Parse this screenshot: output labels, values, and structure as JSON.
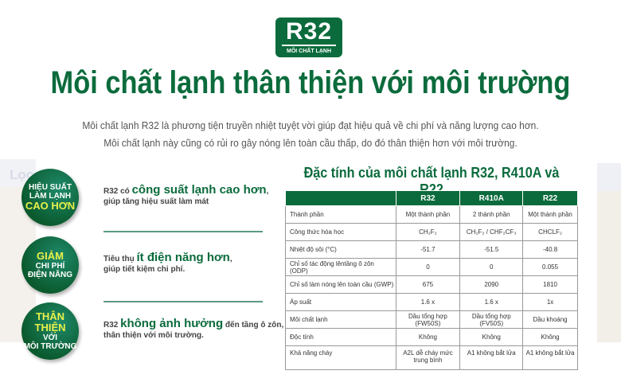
{
  "background": {
    "partial_text": "Lọc"
  },
  "logo": {
    "main": "R32",
    "caption": "MÔI CHẤT LẠNH"
  },
  "title": "Môi chất lạnh thân thiện với môi trường",
  "subtitle": [
    "Môi chất lạnh R32 là phương tiện truyền nhiệt tuyệt vời giúp đạt hiệu quả về chi phí và năng lượng cao hơn.",
    "Môi chất lạnh này cũng có rủi ro gây nóng lên toàn cầu thấp, do đó thân thiện hơn với môi trường."
  ],
  "features": [
    {
      "badge": [
        "HIỆU SUẤT",
        "LÀM LẠNH",
        "CAO HƠN"
      ],
      "pre": "R32 có ",
      "highlight": "công suất lạnh cao hơn",
      "post": ",",
      "line2": "giúp tăng hiệu suất làm mát"
    },
    {
      "badge": [
        "GIẢM",
        "CHI PHÍ",
        "ĐIỆN NĂNG"
      ],
      "pre": "Tiêu thụ ",
      "highlight": "ít điện năng hơn",
      "post": ",",
      "line2": "giúp tiết kiệm chi phí."
    },
    {
      "badge": [
        "THÂN THIỆN",
        "VỚI",
        "MÔI TRƯỜNG"
      ],
      "pre": "R32 ",
      "highlight": "không ảnh hưởng",
      "post": " đến tầng ô zôn,",
      "line2": "thân thiện với môi trường."
    }
  ],
  "table": {
    "title": "Đặc tính của môi chất lạnh R32, R410A và R22",
    "headers": [
      "",
      "R32",
      "R410A",
      "R22"
    ],
    "rows": [
      [
        "Thành phần",
        "Một thành phần",
        "2 thành phần",
        "Một thành phần"
      ],
      [
        "Công thức hóa học",
        "CH₂F₂",
        "CH₂F₂ / CHF₂CF₃",
        "CHCLF₂"
      ],
      [
        "Nhiệt độ sôi (°C)",
        "-51.7",
        "-51.5",
        "-40.8"
      ],
      [
        "Chỉ số tác động lêntầng ô zôn (ODP)",
        "0",
        "0",
        "0.055"
      ],
      [
        "Chỉ số làm nóng  lên toàn cầu (GWP)",
        "675",
        "2090",
        "1810"
      ],
      [
        "Áp suất",
        "1.6 x",
        "1.6 x",
        "1x"
      ],
      [
        "Môi chất lạnh",
        "Dầu tổng hợp (FW50S)",
        "Dầu tổng hợp (FV50S)",
        "Dầu khoáng"
      ],
      [
        "Độc tính",
        "Không",
        "Không",
        "Không"
      ],
      [
        "Khả năng cháy",
        "A2L dễ cháy mức trung bình",
        "A1 không bắt lửa",
        "A1 không bắt lửa"
      ]
    ]
  },
  "colors": {
    "brand_green": "#0b6b3c",
    "highlight_yellow": "#e8f04a"
  }
}
